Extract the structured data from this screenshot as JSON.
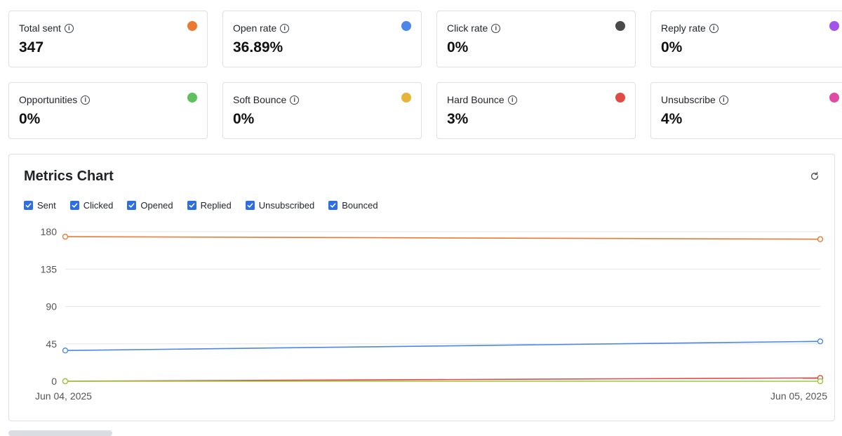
{
  "stats": [
    {
      "label": "Total sent",
      "value": "347",
      "color": "#ea7a32",
      "icon": "info-icon"
    },
    {
      "label": "Open rate",
      "value": "36.89%",
      "color": "#4b86e8",
      "icon": "info-icon"
    },
    {
      "label": "Click rate",
      "value": "0%",
      "color": "#4a4a4a",
      "icon": "info-icon"
    },
    {
      "label": "Reply rate",
      "value": "0%",
      "color": "#a452e8",
      "icon": "info-icon"
    },
    {
      "label": "Opportunities",
      "value": "0%",
      "color": "#5fc060",
      "icon": "info-icon"
    },
    {
      "label": "Soft Bounce",
      "value": "0%",
      "color": "#e6b43a",
      "icon": "info-icon"
    },
    {
      "label": "Hard Bounce",
      "value": "3%",
      "color": "#e04b45",
      "icon": "info-icon"
    },
    {
      "label": "Unsubscribe",
      "value": "4%",
      "color": "#de4ba2",
      "icon": "info-icon"
    }
  ],
  "chart": {
    "title": "Metrics Chart",
    "refresh_icon": "refresh-icon",
    "legend": [
      {
        "label": "Sent",
        "checked": true
      },
      {
        "label": "Clicked",
        "checked": true
      },
      {
        "label": "Opened",
        "checked": true
      },
      {
        "label": "Replied",
        "checked": true
      },
      {
        "label": "Unsubscribed",
        "checked": true
      },
      {
        "label": "Bounced",
        "checked": true
      }
    ]
  },
  "chart_data": {
    "type": "line",
    "title": "Metrics Chart",
    "xlabel": "",
    "ylabel": "",
    "categories": [
      "Jun 04, 2025",
      "Jun 05, 2025"
    ],
    "yticks": [
      0,
      45,
      90,
      135,
      180
    ],
    "ylim": [
      0,
      180
    ],
    "grid": true,
    "series": [
      {
        "values": [
          174,
          171
        ],
        "color": "#ea7a32"
      },
      {
        "values": [
          37,
          48
        ],
        "color": "#4b86e8"
      },
      {
        "values": [
          0,
          4
        ],
        "color": "#e04b45"
      },
      {
        "values": [
          0,
          0
        ],
        "color": "#9ac93e"
      }
    ]
  }
}
